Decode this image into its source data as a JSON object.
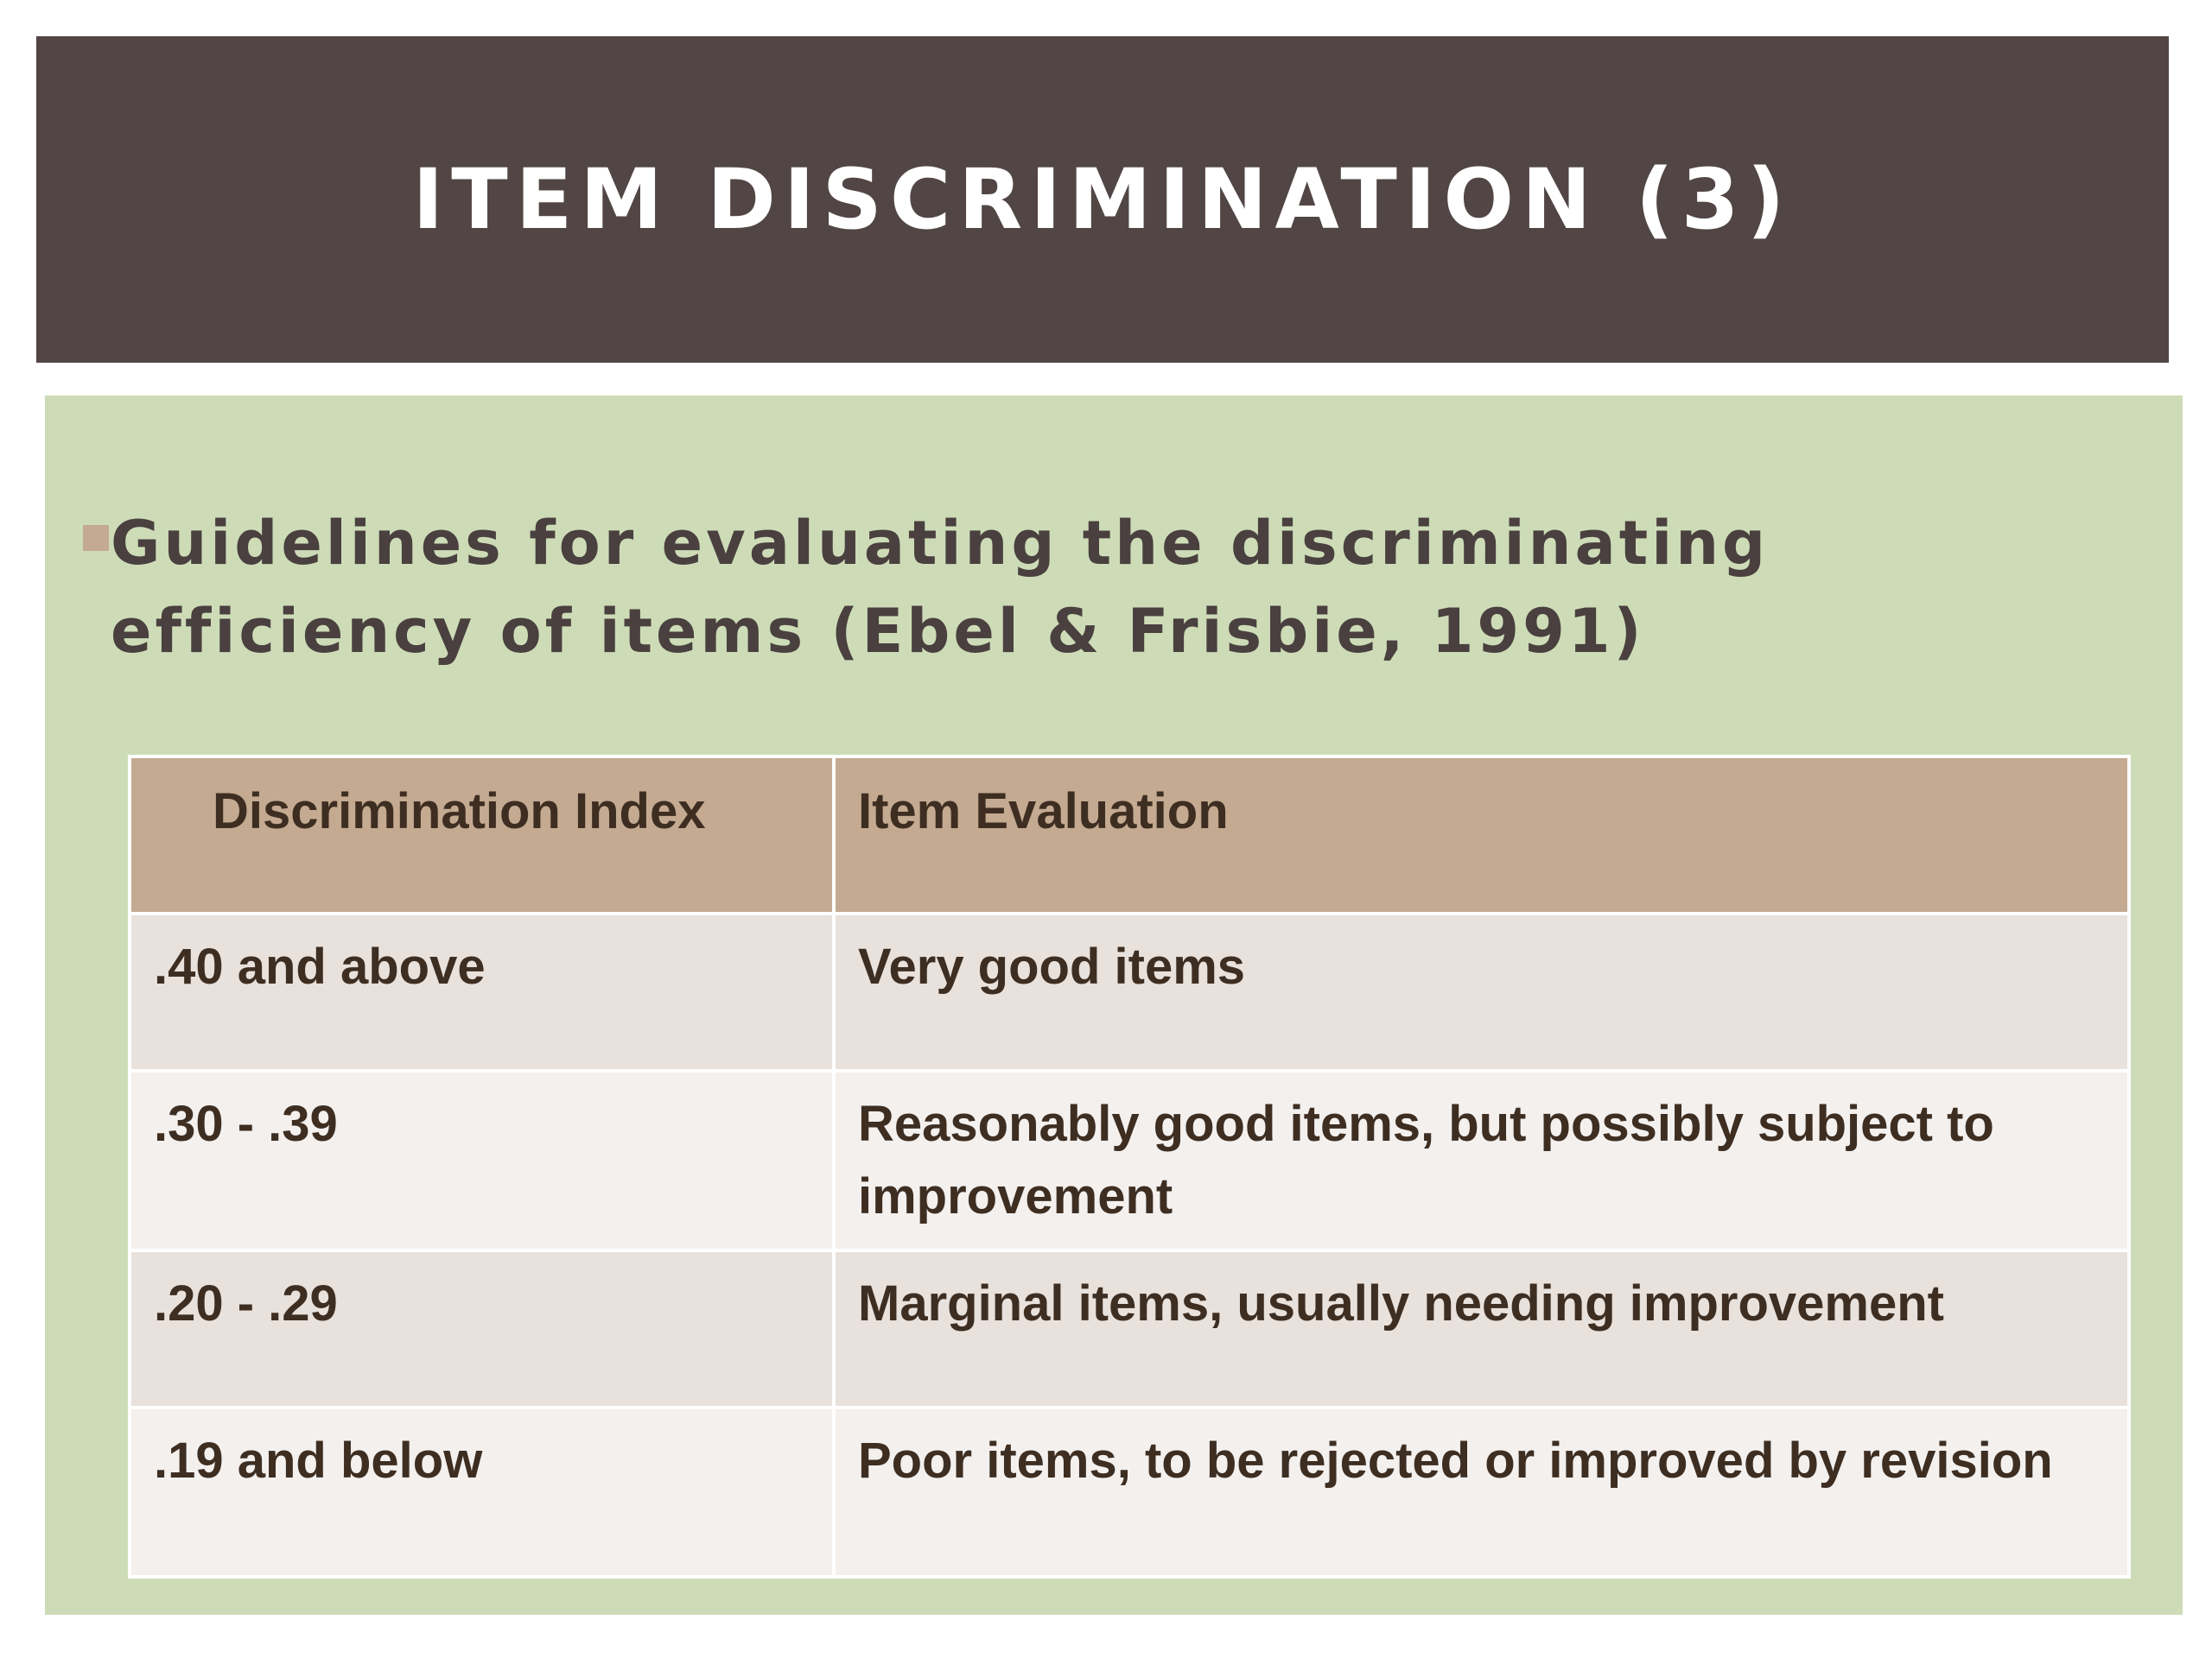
{
  "slide": {
    "title": "ITEM DISCRIMINATION (3)",
    "bullet": "Guidelines for evaluating the discriminating efficiency of items (Ebel & Frisbie, 1991)",
    "table": {
      "headers": [
        "Discrimination Index",
        "Item Evaluation"
      ],
      "rows": [
        [
          ".40 and above",
          "Very good items"
        ],
        [
          ".30 - .39",
          "Reasonably good items, but possibly subject to improvement"
        ],
        [
          ".20 - .29",
          "Marginal items, usually needing improvement"
        ],
        [
          ".19 and below",
          "Poor items, to be rejected or improved by revision"
        ]
      ]
    }
  },
  "colors": {
    "title_bar": "#514645",
    "content_background": "#cddcb7",
    "table_header": "#c4aa91",
    "row_shaded": "#e8e1dc",
    "row_light": "#f3f0ee",
    "bullet_marker": "#c4aa91"
  },
  "icons": {
    "bullet": "square-bullet-icon"
  }
}
